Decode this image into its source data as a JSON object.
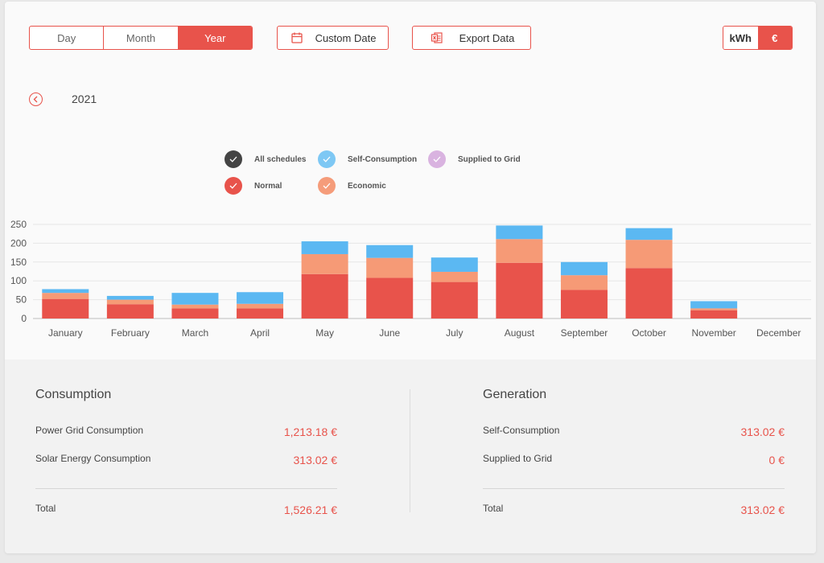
{
  "period_tabs": [
    {
      "label": "Day",
      "active": false
    },
    {
      "label": "Month",
      "active": false
    },
    {
      "label": "Year",
      "active": true
    }
  ],
  "custom_date_label": "Custom Date",
  "export_label": "Export Data",
  "units": [
    {
      "label": "kWh",
      "active": false
    },
    {
      "label": "€",
      "active": true
    }
  ],
  "year": "2021",
  "legend": [
    {
      "label": "All schedules",
      "color": "#444444",
      "icon": "check-icon"
    },
    {
      "label": "Self-Consumption",
      "color": "#7ec8f4",
      "icon": "check-icon"
    },
    {
      "label": "Supplied to Grid",
      "color": "#d9b3e0",
      "icon": "check-icon"
    },
    {
      "label": "Normal",
      "color": "#e8534b",
      "icon": "check-icon"
    },
    {
      "label": "Economic",
      "color": "#f59c7a",
      "icon": "check-icon"
    }
  ],
  "chart_data": {
    "type": "bar",
    "stacked": true,
    "categories": [
      "January",
      "February",
      "March",
      "April",
      "May",
      "June",
      "July",
      "August",
      "September",
      "October",
      "November",
      "December"
    ],
    "series": [
      {
        "name": "Normal",
        "color": "#e8534b",
        "values": [
          52,
          38,
          27,
          27,
          118,
          108,
          97,
          148,
          76,
          134,
          22,
          0
        ]
      },
      {
        "name": "Economic",
        "color": "#f69a76",
        "values": [
          16,
          12,
          10,
          12,
          53,
          53,
          27,
          63,
          39,
          75,
          5,
          0
        ]
      },
      {
        "name": "Self-Consumption",
        "color": "#5bb8f2",
        "values": [
          10,
          10,
          31,
          31,
          34,
          34,
          38,
          36,
          35,
          31,
          19,
          0
        ]
      }
    ],
    "ylim": [
      0,
      250
    ],
    "yticks": [
      0,
      50,
      100,
      150,
      200,
      250
    ],
    "grid": true
  },
  "consumption": {
    "title": "Consumption",
    "rows": [
      {
        "label": "Power Grid Consumption",
        "value": "1,213.18 €"
      },
      {
        "label": "Solar Energy Consumption",
        "value": "313.02 €"
      }
    ],
    "total_label": "Total",
    "total_value": "1,526.21 €"
  },
  "generation": {
    "title": "Generation",
    "rows": [
      {
        "label": "Self-Consumption",
        "value": "313.02 €"
      },
      {
        "label": "Supplied to Grid",
        "value": "0 €"
      }
    ],
    "total_label": "Total",
    "total_value": "313.02 €"
  }
}
